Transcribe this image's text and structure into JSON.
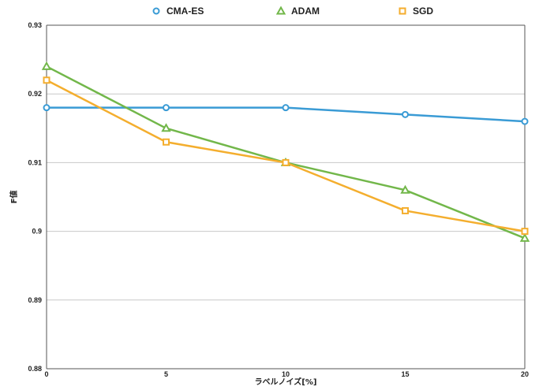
{
  "chart_data": {
    "type": "line",
    "xlabel": "ラベルノイズ[%]",
    "ylabel": "F値",
    "x": [
      0,
      5,
      10,
      15,
      20
    ],
    "xticks": [
      "0",
      "5",
      "10",
      "15",
      "20"
    ],
    "xlim": [
      0,
      20
    ],
    "ylim": [
      0.88,
      0.93
    ],
    "yticks": [
      "0.88",
      "0.89",
      "0.9",
      "0.91",
      "0.92",
      "0.93"
    ],
    "grid": "horizontal",
    "legend": "top-center",
    "series": [
      {
        "name": "CMA-ES",
        "color": "#3a9bd5",
        "marker": "circle",
        "values": [
          0.918,
          0.918,
          0.918,
          0.917,
          0.916
        ]
      },
      {
        "name": "ADAM",
        "color": "#72b74a",
        "marker": "triangle",
        "values": [
          0.924,
          0.915,
          0.91,
          0.906,
          0.899
        ]
      },
      {
        "name": "SGD",
        "color": "#f4ae2e",
        "marker": "square",
        "values": [
          0.922,
          0.913,
          0.91,
          0.903,
          0.9
        ]
      }
    ]
  }
}
